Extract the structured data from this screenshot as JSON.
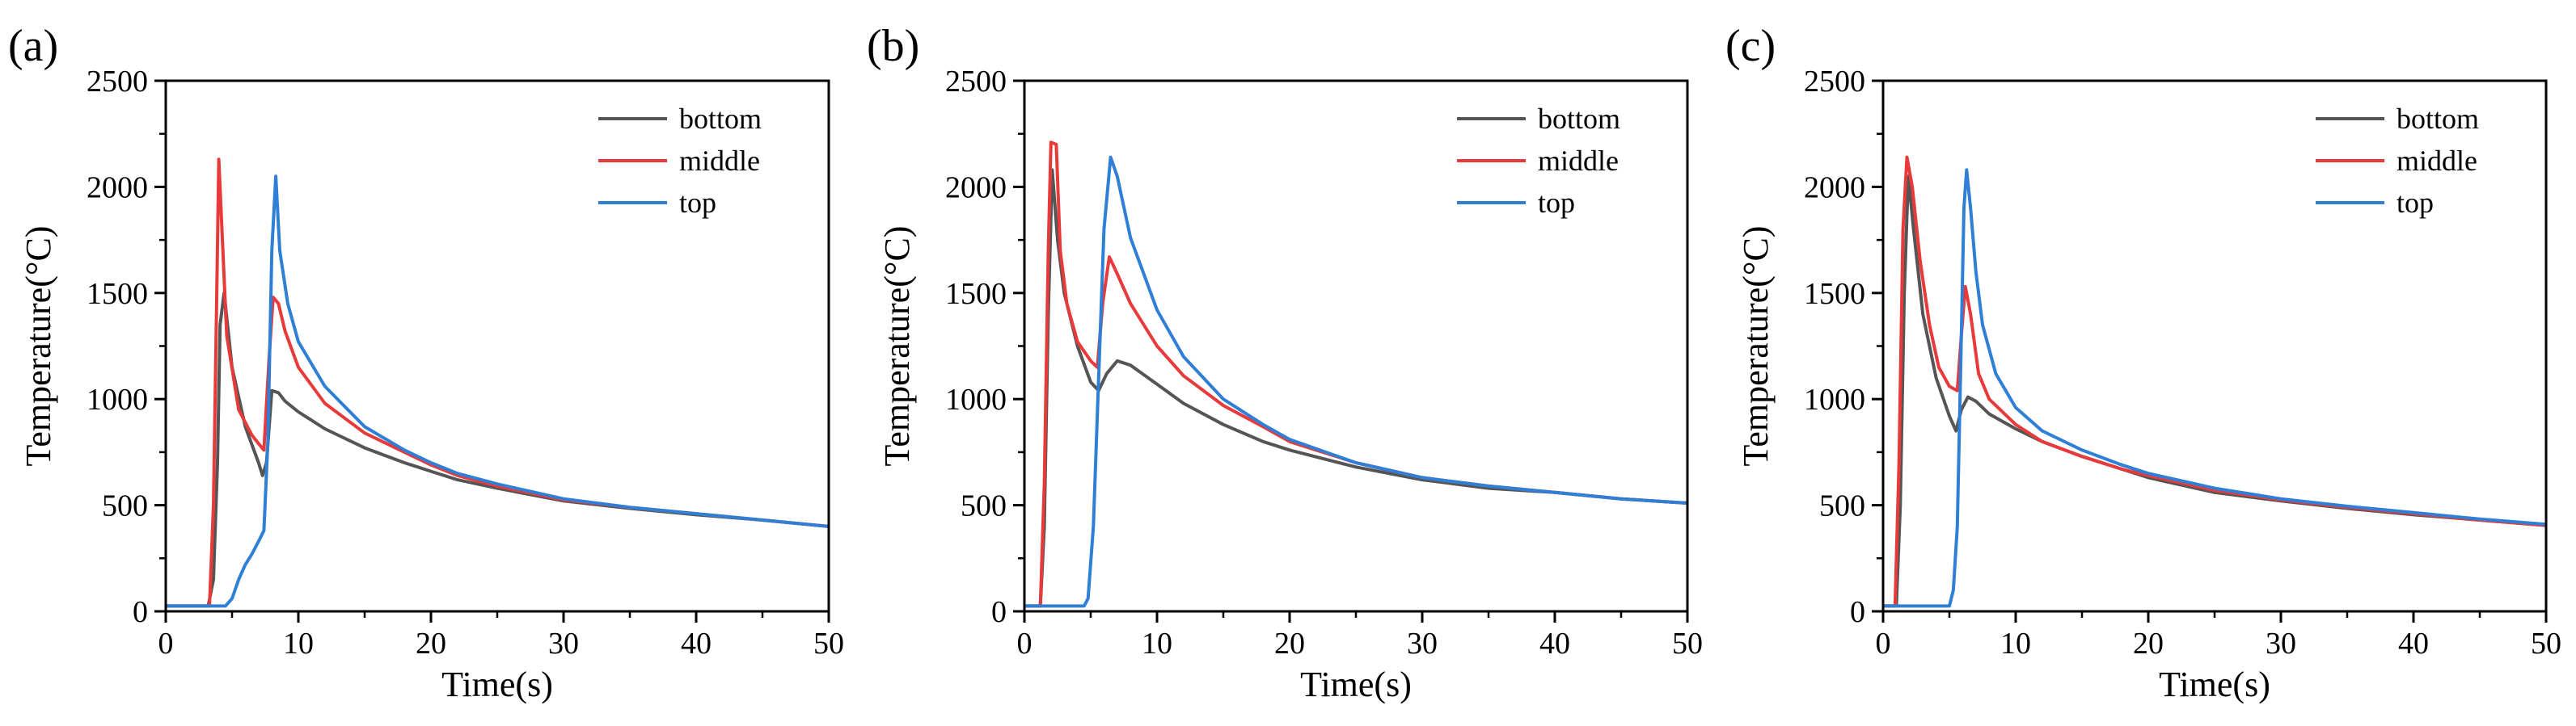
{
  "chart_data": [
    {
      "type": "line",
      "panel_label": "(a)",
      "xlabel": "Time(s)",
      "ylabel": "Temperature(°C)",
      "xlim": [
        0,
        50
      ],
      "ylim": [
        0,
        2500
      ],
      "xticks": [
        0,
        10,
        20,
        30,
        40,
        50
      ],
      "yticks": [
        0,
        500,
        1000,
        1500,
        2000,
        2500
      ],
      "legend_position": "top-right",
      "series": [
        {
          "name": "bottom",
          "color": "#555555",
          "points": [
            [
              0,
              25
            ],
            [
              3.2,
              25
            ],
            [
              3.6,
              150
            ],
            [
              3.9,
              700
            ],
            [
              4.1,
              1350
            ],
            [
              4.4,
              1500
            ],
            [
              5,
              1150
            ],
            [
              6,
              870
            ],
            [
              7,
              700
            ],
            [
              7.3,
              640
            ],
            [
              7.6,
              700
            ],
            [
              8,
              1040
            ],
            [
              8.5,
              1030
            ],
            [
              9,
              990
            ],
            [
              10,
              940
            ],
            [
              12,
              860
            ],
            [
              15,
              770
            ],
            [
              18,
              700
            ],
            [
              20,
              660
            ],
            [
              22,
              620
            ],
            [
              25,
              580
            ],
            [
              30,
              520
            ],
            [
              35,
              485
            ],
            [
              40,
              455
            ],
            [
              45,
              430
            ],
            [
              50,
              400
            ]
          ]
        },
        {
          "name": "middle",
          "color": "#e83a3a",
          "points": [
            [
              0,
              25
            ],
            [
              3.3,
              25
            ],
            [
              3.6,
              500
            ],
            [
              3.85,
              1500
            ],
            [
              4.0,
              2130
            ],
            [
              4.2,
              1850
            ],
            [
              4.6,
              1300
            ],
            [
              5.5,
              950
            ],
            [
              6.5,
              830
            ],
            [
              7,
              790
            ],
            [
              7.4,
              760
            ],
            [
              7.8,
              1200
            ],
            [
              8.1,
              1480
            ],
            [
              8.5,
              1450
            ],
            [
              9,
              1320
            ],
            [
              10,
              1150
            ],
            [
              12,
              980
            ],
            [
              15,
              840
            ],
            [
              18,
              750
            ],
            [
              20,
              690
            ],
            [
              22,
              640
            ],
            [
              25,
              590
            ],
            [
              30,
              525
            ],
            [
              35,
              490
            ],
            [
              40,
              460
            ],
            [
              45,
              430
            ],
            [
              50,
              400
            ]
          ]
        },
        {
          "name": "top",
          "color": "#2f7fd6",
          "points": [
            [
              0,
              25
            ],
            [
              4.5,
              25
            ],
            [
              5,
              60
            ],
            [
              5.5,
              150
            ],
            [
              6,
              220
            ],
            [
              6.5,
              270
            ],
            [
              7,
              330
            ],
            [
              7.4,
              380
            ],
            [
              7.7,
              800
            ],
            [
              8.0,
              1700
            ],
            [
              8.3,
              2050
            ],
            [
              8.6,
              1700
            ],
            [
              9.2,
              1450
            ],
            [
              10,
              1270
            ],
            [
              12,
              1060
            ],
            [
              15,
              870
            ],
            [
              18,
              760
            ],
            [
              20,
              700
            ],
            [
              22,
              650
            ],
            [
              25,
              600
            ],
            [
              30,
              530
            ],
            [
              35,
              490
            ],
            [
              40,
              460
            ],
            [
              45,
              430
            ],
            [
              50,
              400
            ]
          ]
        }
      ]
    },
    {
      "type": "line",
      "panel_label": "(b)",
      "xlabel": "Time(s)",
      "ylabel": "Temperature(°C)",
      "xlim": [
        0,
        50
      ],
      "ylim": [
        0,
        2500
      ],
      "xticks": [
        0,
        10,
        20,
        30,
        40,
        50
      ],
      "yticks": [
        0,
        500,
        1000,
        1500,
        2000,
        2500
      ],
      "legend_position": "top-right",
      "series": [
        {
          "name": "bottom",
          "color": "#555555",
          "points": [
            [
              0,
              25
            ],
            [
              1.2,
              25
            ],
            [
              1.5,
              400
            ],
            [
              1.8,
              1400
            ],
            [
              2.1,
              2080
            ],
            [
              2.5,
              1750
            ],
            [
              3,
              1500
            ],
            [
              4,
              1250
            ],
            [
              5,
              1080
            ],
            [
              5.6,
              1040
            ],
            [
              6.2,
              1120
            ],
            [
              7,
              1180
            ],
            [
              8,
              1160
            ],
            [
              10,
              1070
            ],
            [
              12,
              980
            ],
            [
              15,
              880
            ],
            [
              18,
              800
            ],
            [
              20,
              760
            ],
            [
              25,
              680
            ],
            [
              30,
              620
            ],
            [
              35,
              580
            ],
            [
              40,
              560
            ],
            [
              45,
              530
            ],
            [
              50,
              510
            ]
          ]
        },
        {
          "name": "middle",
          "color": "#e83a3a",
          "points": [
            [
              0,
              25
            ],
            [
              1.2,
              25
            ],
            [
              1.5,
              600
            ],
            [
              1.8,
              1700
            ],
            [
              2.0,
              2210
            ],
            [
              2.4,
              2200
            ],
            [
              2.7,
              1700
            ],
            [
              3.2,
              1450
            ],
            [
              4,
              1270
            ],
            [
              5,
              1180
            ],
            [
              5.5,
              1150
            ],
            [
              5.9,
              1450
            ],
            [
              6.4,
              1670
            ],
            [
              7,
              1590
            ],
            [
              8,
              1450
            ],
            [
              10,
              1250
            ],
            [
              12,
              1110
            ],
            [
              15,
              970
            ],
            [
              18,
              870
            ],
            [
              20,
              800
            ],
            [
              25,
              700
            ],
            [
              30,
              630
            ],
            [
              35,
              590
            ],
            [
              40,
              560
            ],
            [
              45,
              530
            ],
            [
              50,
              510
            ]
          ]
        },
        {
          "name": "top",
          "color": "#2f7fd6",
          "points": [
            [
              0,
              25
            ],
            [
              4.5,
              25
            ],
            [
              4.8,
              60
            ],
            [
              5.2,
              400
            ],
            [
              5.6,
              1100
            ],
            [
              6.0,
              1800
            ],
            [
              6.5,
              2140
            ],
            [
              7,
              2050
            ],
            [
              8,
              1760
            ],
            [
              10,
              1420
            ],
            [
              12,
              1200
            ],
            [
              15,
              1000
            ],
            [
              18,
              880
            ],
            [
              20,
              810
            ],
            [
              25,
              700
            ],
            [
              30,
              630
            ],
            [
              35,
              590
            ],
            [
              40,
              560
            ],
            [
              45,
              530
            ],
            [
              50,
              510
            ]
          ]
        }
      ]
    },
    {
      "type": "line",
      "panel_label": "(c)",
      "xlabel": "Time(s)",
      "ylabel": "Temperature(°C)",
      "xlim": [
        0,
        50
      ],
      "ylim": [
        0,
        2500
      ],
      "xticks": [
        0,
        10,
        20,
        30,
        40,
        50
      ],
      "yticks": [
        0,
        500,
        1000,
        1500,
        2000,
        2500
      ],
      "legend_position": "top-right",
      "series": [
        {
          "name": "bottom",
          "color": "#555555",
          "points": [
            [
              0,
              25
            ],
            [
              1.0,
              25
            ],
            [
              1.3,
              500
            ],
            [
              1.6,
              1500
            ],
            [
              1.9,
              2050
            ],
            [
              2.3,
              1800
            ],
            [
              3,
              1400
            ],
            [
              4,
              1100
            ],
            [
              5,
              920
            ],
            [
              5.5,
              850
            ],
            [
              5.9,
              950
            ],
            [
              6.4,
              1010
            ],
            [
              7,
              990
            ],
            [
              8,
              930
            ],
            [
              10,
              860
            ],
            [
              12,
              800
            ],
            [
              15,
              730
            ],
            [
              18,
              670
            ],
            [
              20,
              630
            ],
            [
              25,
              560
            ],
            [
              30,
              520
            ],
            [
              35,
              485
            ],
            [
              40,
              455
            ],
            [
              45,
              430
            ],
            [
              50,
              405
            ]
          ]
        },
        {
          "name": "middle",
          "color": "#e83a3a",
          "points": [
            [
              0,
              25
            ],
            [
              0.9,
              25
            ],
            [
              1.2,
              700
            ],
            [
              1.5,
              1800
            ],
            [
              1.8,
              2140
            ],
            [
              2.2,
              2000
            ],
            [
              2.8,
              1650
            ],
            [
              3.5,
              1350
            ],
            [
              4.2,
              1150
            ],
            [
              5,
              1060
            ],
            [
              5.6,
              1040
            ],
            [
              5.9,
              1300
            ],
            [
              6.2,
              1530
            ],
            [
              6.6,
              1400
            ],
            [
              7.2,
              1120
            ],
            [
              8,
              1000
            ],
            [
              10,
              880
            ],
            [
              12,
              800
            ],
            [
              15,
              730
            ],
            [
              18,
              670
            ],
            [
              20,
              640
            ],
            [
              25,
              570
            ],
            [
              30,
              525
            ],
            [
              35,
              490
            ],
            [
              40,
              460
            ],
            [
              45,
              430
            ],
            [
              50,
              405
            ]
          ]
        },
        {
          "name": "top",
          "color": "#2f7fd6",
          "points": [
            [
              0,
              25
            ],
            [
              5.0,
              25
            ],
            [
              5.3,
              100
            ],
            [
              5.6,
              400
            ],
            [
              5.9,
              1300
            ],
            [
              6.1,
              1900
            ],
            [
              6.3,
              2080
            ],
            [
              6.6,
              1900
            ],
            [
              7,
              1600
            ],
            [
              7.5,
              1350
            ],
            [
              8.5,
              1120
            ],
            [
              10,
              960
            ],
            [
              12,
              850
            ],
            [
              15,
              760
            ],
            [
              18,
              690
            ],
            [
              20,
              650
            ],
            [
              25,
              580
            ],
            [
              30,
              530
            ],
            [
              35,
              495
            ],
            [
              40,
              465
            ],
            [
              45,
              435
            ],
            [
              50,
              410
            ]
          ]
        }
      ]
    }
  ]
}
